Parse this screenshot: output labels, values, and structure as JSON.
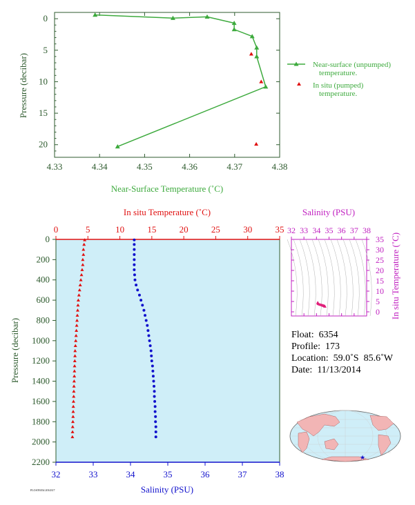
{
  "chart_data": [
    {
      "type": "line",
      "id": "near-surface-temperature",
      "xlabel": "Near-Surface Temperature (˚C)",
      "ylabel": "Pressure (decibar)",
      "xlim": [
        4.33,
        4.38
      ],
      "ylim": [
        22,
        -1
      ],
      "xticks": [
        "4.33",
        "4.34",
        "4.35",
        "4.36",
        "4.37",
        "4.38"
      ],
      "xtick_values": [
        4.33,
        4.34,
        4.35,
        4.36,
        4.37,
        4.38
      ],
      "yticks": [
        "0",
        "5",
        "10",
        "15",
        "20"
      ],
      "ytick_values": [
        0,
        5,
        10,
        15,
        20
      ],
      "series": [
        {
          "name": "Near-surface (unpumped) temperature.",
          "color": "#3daa3d",
          "marker": "triangle",
          "x": [
            4.339,
            4.3563,
            4.3639,
            4.3699,
            4.3699,
            4.3739,
            4.3749,
            4.3749,
            4.3769,
            4.344
          ],
          "y": [
            -0.6,
            -0.1,
            -0.3,
            0.7,
            1.7,
            2.8,
            4.6,
            6.0,
            10.8,
            20.3
          ]
        },
        {
          "name": "In situ (pumped) temperature.",
          "color": "#e01010",
          "marker": "triangle",
          "x": [
            4.3737,
            4.3759,
            4.3748
          ],
          "y": [
            5.6,
            10.0,
            19.9
          ]
        }
      ],
      "legend": "right"
    },
    {
      "type": "scatter",
      "id": "profile",
      "top_xlabel": "In situ Temperature (˚C)",
      "bottom_xlabel": "Salinity (PSU)",
      "ylabel": "Pressure (decibar)",
      "temp_lim": [
        0,
        35
      ],
      "sal_lim": [
        32,
        38
      ],
      "ylim": [
        2200,
        0
      ],
      "temp_ticks": [
        "0",
        "5",
        "10",
        "15",
        "20",
        "25",
        "30",
        "35"
      ],
      "sal_ticks": [
        "32",
        "33",
        "34",
        "35",
        "36",
        "37",
        "38"
      ],
      "yticks": [
        "0",
        "200",
        "400",
        "600",
        "800",
        "1000",
        "1200",
        "1400",
        "1600",
        "1800",
        "2000",
        "2200"
      ],
      "temperature": {
        "color": "#e01010",
        "pressure": [
          5,
          50,
          100,
          150,
          200,
          250,
          300,
          350,
          400,
          450,
          500,
          550,
          600,
          650,
          700,
          750,
          800,
          850,
          900,
          950,
          1000,
          1050,
          1100,
          1150,
          1200,
          1250,
          1300,
          1350,
          1400,
          1450,
          1500,
          1550,
          1600,
          1650,
          1700,
          1750,
          1800,
          1850,
          1900,
          1950
        ],
        "values": [
          4.5,
          4.4,
          4.3,
          4.3,
          4.2,
          4.2,
          4.1,
          4.0,
          3.9,
          3.8,
          3.7,
          3.6,
          3.5,
          3.45,
          3.4,
          3.35,
          3.3,
          3.25,
          3.2,
          3.15,
          3.1,
          3.05,
          3.0,
          2.98,
          2.95,
          2.92,
          2.9,
          2.88,
          2.85,
          2.82,
          2.8,
          2.78,
          2.75,
          2.72,
          2.7,
          2.68,
          2.65,
          2.62,
          2.6,
          2.58
        ]
      },
      "salinity": {
        "color": "#1010cc",
        "pressure": [
          5,
          50,
          100,
          150,
          200,
          250,
          300,
          350,
          400,
          450,
          500,
          550,
          600,
          650,
          700,
          750,
          800,
          850,
          900,
          950,
          1000,
          1050,
          1100,
          1150,
          1200,
          1250,
          1300,
          1350,
          1400,
          1450,
          1500,
          1550,
          1600,
          1650,
          1700,
          1750,
          1800,
          1850,
          1900,
          1950
        ],
        "values": [
          34.1,
          34.1,
          34.1,
          34.1,
          34.1,
          34.1,
          34.1,
          34.11,
          34.12,
          34.15,
          34.19,
          34.24,
          34.28,
          34.32,
          34.36,
          34.39,
          34.42,
          34.45,
          34.47,
          34.49,
          34.51,
          34.53,
          34.55,
          34.56,
          34.57,
          34.59,
          34.6,
          34.61,
          34.62,
          34.63,
          34.64,
          34.64,
          34.65,
          34.66,
          34.66,
          34.67,
          34.67,
          34.68,
          34.68,
          34.68
        ]
      }
    },
    {
      "type": "scatter",
      "id": "theta-s-inset",
      "top_xlabel": "Salinity (PSU)",
      "right_ylabel": "In situ Temperature (˚C)",
      "xlim": [
        32,
        38
      ],
      "ylim": [
        -2,
        35
      ],
      "xticks": [
        "32",
        "33",
        "34",
        "35",
        "36",
        "37",
        "38"
      ],
      "yticks": [
        "0",
        "5",
        "10",
        "15",
        "20",
        "25",
        "30",
        "35"
      ],
      "ytick_values": [
        0,
        5,
        10,
        15,
        20,
        25,
        30,
        35
      ],
      "color": "#e0207a",
      "x": [
        34.1,
        34.1,
        34.12,
        34.15,
        34.2,
        34.28,
        34.36,
        34.42,
        34.48,
        34.53,
        34.57,
        34.6,
        34.63,
        34.65,
        34.67,
        34.68
      ],
      "y": [
        4.5,
        4.3,
        4.1,
        3.9,
        3.7,
        3.5,
        3.4,
        3.3,
        3.15,
        3.05,
        2.95,
        2.9,
        2.82,
        2.75,
        2.65,
        2.58
      ]
    }
  ],
  "info": {
    "float": "Float:  6354",
    "profile": "Profile:  173",
    "location": "Location:  59.0˚S  85.6˚W",
    "date": "Date:  11/13/2014"
  },
  "legend": {
    "unpumped": [
      "Near-surface (unpumped)",
      "temperature."
    ],
    "pumped": [
      "In situ (pumped)",
      "temperature."
    ]
  },
  "footnote": "FLOAT6354 2014317",
  "colors": {
    "green": "#3daa3d",
    "red": "#e01010",
    "blue": "#1010cc",
    "magenta": "#c020c0",
    "axis_green": "#2d5a2d",
    "plot_bg": "#cfeef8",
    "land": "#f2b5b5",
    "ocean": "#cfeef8"
  }
}
